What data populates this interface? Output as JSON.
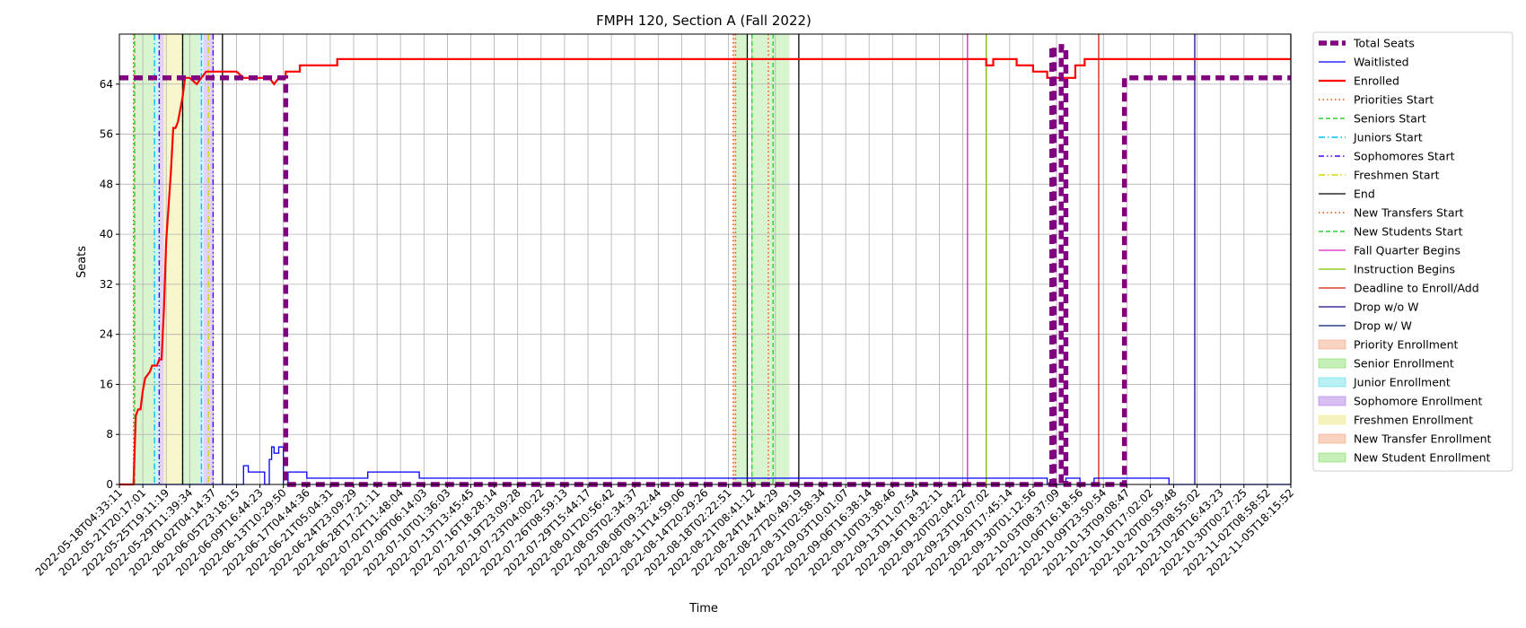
{
  "chart_data": {
    "type": "line",
    "title": "FMPH 120, Section A (Fall 2022)",
    "xlabel": "Time",
    "ylabel": "Seats",
    "ylim": [
      0,
      72
    ],
    "grid": true,
    "legend_placement": "outside-right",
    "y_ticks": [
      0,
      8,
      16,
      24,
      32,
      40,
      48,
      56,
      64
    ],
    "x_ticks": [
      "2022-05-18T04:33:11",
      "2022-05-21T20:17:01",
      "2022-05-25T19:11:19",
      "2022-05-29T11:39:34",
      "2022-06-02T04:14:37",
      "2022-06-05T23:18:15",
      "2022-06-09T16:44:23",
      "2022-06-13T10:29:50",
      "2022-06-17T04:44:36",
      "2022-06-21T05:04:31",
      "2022-06-24T23:09:29",
      "2022-06-28T17:21:11",
      "2022-07-02T11:48:04",
      "2022-07-06T06:14:03",
      "2022-07-10T01:36:03",
      "2022-07-13T13:45:45",
      "2022-07-16T18:28:14",
      "2022-07-19T23:09:28",
      "2022-07-23T04:00:22",
      "2022-07-26T08:59:13",
      "2022-07-29T15:44:17",
      "2022-08-01T20:56:42",
      "2022-08-05T02:34:37",
      "2022-08-08T09:32:44",
      "2022-08-11T14:59:06",
      "2022-08-14T20:29:26",
      "2022-08-18T02:22:51",
      "2022-08-21T08:41:12",
      "2022-08-24T14:44:29",
      "2022-08-27T20:49:19",
      "2022-08-31T02:58:34",
      "2022-09-03T10:01:07",
      "2022-09-06T16:38:14",
      "2022-09-10T03:38:46",
      "2022-09-13T11:07:54",
      "2022-09-16T18:32:11",
      "2022-09-20T02:04:22",
      "2022-09-23T10:07:02",
      "2022-09-26T17:45:14",
      "2022-09-30T01:12:56",
      "2022-10-03T08:37:09",
      "2022-10-06T16:18:56",
      "2022-10-09T23:50:54",
      "2022-10-13T09:08:47",
      "2022-10-16T17:02:02",
      "2022-10-20T00:59:48",
      "2022-10-23T08:55:02",
      "2022-10-26T16:43:23",
      "2022-10-30T00:27:25",
      "2022-11-02T08:58:52",
      "2022-11-05T18:15:52"
    ],
    "x_index_max": 50,
    "series": [
      {
        "name": "Total Seats",
        "color": "#800080",
        "style": "dashed-thick",
        "points": [
          [
            0,
            65
          ],
          [
            7.1,
            65
          ],
          [
            7.1,
            0
          ],
          [
            39.8,
            0
          ],
          [
            39.8,
            70
          ],
          [
            39.9,
            70
          ],
          [
            39.9,
            0
          ],
          [
            40.2,
            0
          ],
          [
            40.2,
            70
          ],
          [
            40.4,
            70
          ],
          [
            40.4,
            0
          ],
          [
            42.9,
            0
          ],
          [
            42.9,
            65
          ],
          [
            50,
            65
          ]
        ]
      },
      {
        "name": "Waitlisted",
        "color": "#0000ff",
        "style": "solid",
        "points": [
          [
            0,
            0
          ],
          [
            5.3,
            0
          ],
          [
            5.3,
            3
          ],
          [
            5.5,
            3
          ],
          [
            5.5,
            2
          ],
          [
            6.2,
            2
          ],
          [
            6.2,
            0
          ],
          [
            6.4,
            0
          ],
          [
            6.4,
            4
          ],
          [
            6.5,
            4
          ],
          [
            6.5,
            6
          ],
          [
            6.6,
            6
          ],
          [
            6.6,
            5
          ],
          [
            6.8,
            5
          ],
          [
            6.8,
            6
          ],
          [
            7,
            6
          ],
          [
            7,
            0
          ],
          [
            7.2,
            0
          ],
          [
            7.2,
            2
          ],
          [
            8,
            2
          ],
          [
            8,
            1
          ],
          [
            10.6,
            1
          ],
          [
            10.6,
            2
          ],
          [
            12.8,
            2
          ],
          [
            12.8,
            1
          ],
          [
            39.6,
            1
          ],
          [
            39.6,
            0
          ],
          [
            40.4,
            0
          ],
          [
            40.4,
            1
          ],
          [
            41,
            1
          ],
          [
            41,
            0
          ],
          [
            41.6,
            0
          ],
          [
            41.6,
            1
          ],
          [
            44.8,
            1
          ],
          [
            44.8,
            0
          ],
          [
            50,
            0
          ]
        ]
      },
      {
        "name": "Enrolled",
        "color": "#ff0000",
        "style": "solid-thick",
        "points": [
          [
            0,
            0
          ],
          [
            0.6,
            0
          ],
          [
            0.7,
            11
          ],
          [
            0.8,
            12
          ],
          [
            0.9,
            12
          ],
          [
            1.0,
            15
          ],
          [
            1.1,
            17
          ],
          [
            1.3,
            18
          ],
          [
            1.4,
            19
          ],
          [
            1.6,
            19
          ],
          [
            1.7,
            20
          ],
          [
            1.8,
            20
          ],
          [
            1.9,
            28
          ],
          [
            2.0,
            39
          ],
          [
            2.2,
            50
          ],
          [
            2.3,
            57
          ],
          [
            2.4,
            57
          ],
          [
            2.5,
            58
          ],
          [
            2.7,
            62
          ],
          [
            2.8,
            65
          ],
          [
            3.0,
            65
          ],
          [
            3.3,
            64
          ],
          [
            3.7,
            66
          ],
          [
            4.5,
            66
          ],
          [
            5,
            66
          ],
          [
            5.3,
            65
          ],
          [
            6.0,
            65
          ],
          [
            6.2,
            65
          ],
          [
            6.4,
            65
          ],
          [
            6.6,
            64
          ],
          [
            6.8,
            65
          ],
          [
            7.1,
            65
          ],
          [
            7.1,
            66
          ],
          [
            7.7,
            66
          ],
          [
            7.7,
            67
          ],
          [
            9.3,
            67
          ],
          [
            9.3,
            68
          ],
          [
            37.0,
            68
          ],
          [
            37.0,
            67
          ],
          [
            37.3,
            67
          ],
          [
            37.3,
            68
          ],
          [
            38.3,
            68
          ],
          [
            38.3,
            67
          ],
          [
            39.0,
            67
          ],
          [
            39.0,
            66
          ],
          [
            39.6,
            66
          ],
          [
            39.6,
            65
          ],
          [
            40.8,
            65
          ],
          [
            40.8,
            67
          ],
          [
            41.2,
            67
          ],
          [
            41.2,
            68
          ],
          [
            52,
            68
          ]
        ]
      },
      {
        "name": "Priorities Start",
        "color": "#ff4500",
        "style": "dotted",
        "vlines": [
          0.6,
          26.2,
          27.7
        ]
      },
      {
        "name": "Seniors Start",
        "color": "#32cd32",
        "style": "dashed",
        "vlines": [
          0.65,
          2.7
        ]
      },
      {
        "name": "Juniors Start",
        "color": "#00bfff",
        "style": "dashdot",
        "vlines": [
          1.5,
          3.5
        ]
      },
      {
        "name": "Sophomores Start",
        "color": "#4b00ff",
        "style": "dashdotdot",
        "vlines": [
          1.7,
          4.0
        ]
      },
      {
        "name": "Freshmen Start",
        "color": "#d4d40a",
        "style": "dashdot",
        "vlines": [
          3.8
        ]
      },
      {
        "name": "End",
        "color": "#000000",
        "style": "solid",
        "vlines": [
          2.7,
          4.4,
          26.8,
          29.0
        ]
      },
      {
        "name": "New Transfers Start",
        "color": "#ff4500",
        "style": "dotted",
        "vlines": [
          26.3
        ]
      },
      {
        "name": "New Students Start",
        "color": "#32cd32",
        "style": "dashed",
        "vlines": [
          27.0,
          27.9
        ]
      },
      {
        "name": "Fall Quarter Begins",
        "color": "#e020c0",
        "style": "solid",
        "vlines": [
          36.2
        ]
      },
      {
        "name": "Instruction Begins",
        "color": "#7fbf00",
        "style": "solid",
        "vlines": [
          37.0
        ]
      },
      {
        "name": "Deadline to Enroll/Add",
        "color": "#cc2200",
        "style": "solid",
        "vlines": [
          41.8
        ]
      },
      {
        "name": "Drop w/o W",
        "color": "#1a0a8c",
        "style": "solid",
        "vlines": [
          45.9
        ]
      },
      {
        "name": "Drop w/ W",
        "color": "#002266",
        "style": "solid",
        "vlines": [
          50.0
        ]
      }
    ],
    "spans": [
      {
        "name": "Priority Enrollment",
        "color": "#f4a582",
        "opacity": 0.35,
        "ranges": [
          [
            0.6,
            0.7
          ]
        ]
      },
      {
        "name": "Senior Enrollment",
        "color": "#7fdd5f",
        "opacity": 0.3,
        "ranges": [
          [
            0.7,
            1.5
          ]
        ]
      },
      {
        "name": "Junior Enrollment",
        "color": "#5fdde8",
        "opacity": 0.3,
        "ranges": [
          [
            1.5,
            1.7
          ],
          [
            3.4,
            3.6
          ]
        ]
      },
      {
        "name": "Sophomore Enrollment",
        "color": "#b07fe8",
        "opacity": 0.35,
        "ranges": [
          [
            1.7,
            1.9
          ],
          [
            3.6,
            4.0
          ]
        ]
      },
      {
        "name": "Freshmen Enrollment",
        "color": "#f0ec90",
        "opacity": 0.45,
        "ranges": [
          [
            1.9,
            2.7
          ]
        ]
      },
      {
        "name": "New Transfer Enrollment",
        "color": "#f4a582",
        "opacity": 0.35,
        "ranges": [
          [
            26.2,
            26.3
          ]
        ]
      },
      {
        "name": "New Student Enrollment",
        "color": "#7fdd5f",
        "opacity": 0.3,
        "ranges": [
          [
            2.7,
            3.4
          ],
          [
            26.3,
            26.8
          ],
          [
            27.0,
            28.6
          ]
        ]
      }
    ]
  }
}
